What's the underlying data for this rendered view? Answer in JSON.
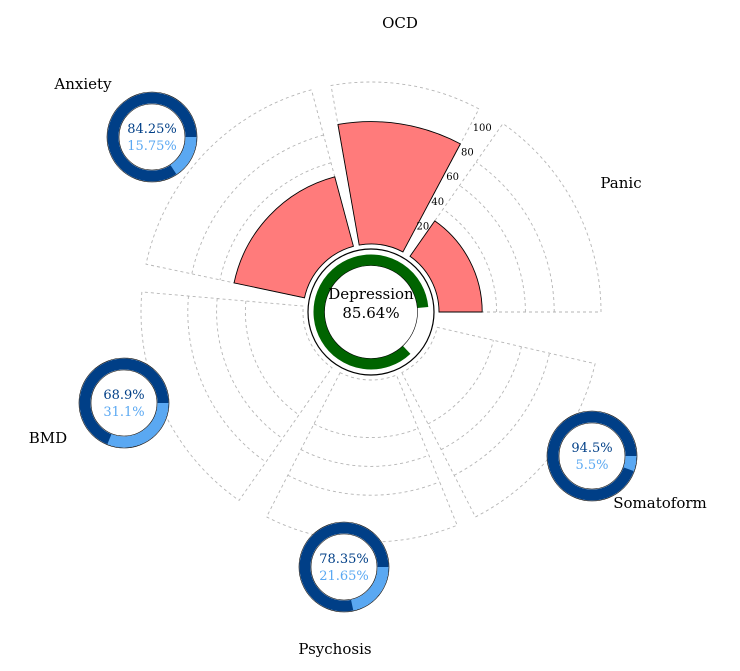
{
  "chart_data": {
    "type": "polar-bar",
    "center": {
      "label": "Depression",
      "value_text": "85.64%",
      "value": 85.64,
      "ring_color": "#006400"
    },
    "radial_ticks": [
      "20",
      "40",
      "60",
      "80",
      "100"
    ],
    "radial_range": [
      0,
      100
    ],
    "bar_color": "#ff7b7b",
    "categories": [
      "Panic",
      "OCD",
      "Anxiety",
      "BMD",
      "Psychosis",
      "Somatoform"
    ],
    "values": [
      30,
      85,
      50,
      0,
      0,
      0
    ],
    "donuts": [
      {
        "category": "Anxiety",
        "primary_text": "84.25%",
        "secondary_text": "15.75%",
        "primary": 84.25,
        "secondary": 15.75
      },
      {
        "category": "BMD",
        "primary_text": "68.9%",
        "secondary_text": "31.1%",
        "primary": 68.9,
        "secondary": 31.1
      },
      {
        "category": "Psychosis",
        "primary_text": "78.35%",
        "secondary_text": "21.65%",
        "primary": 78.35,
        "secondary": 21.65
      },
      {
        "category": "Somatoform",
        "primary_text": "94.5%",
        "secondary_text": "5.5%",
        "primary": 94.5,
        "secondary": 5.5
      }
    ],
    "donut_colors": {
      "primary": "#003f87",
      "secondary": "#5aa8f2"
    },
    "grid": true
  }
}
